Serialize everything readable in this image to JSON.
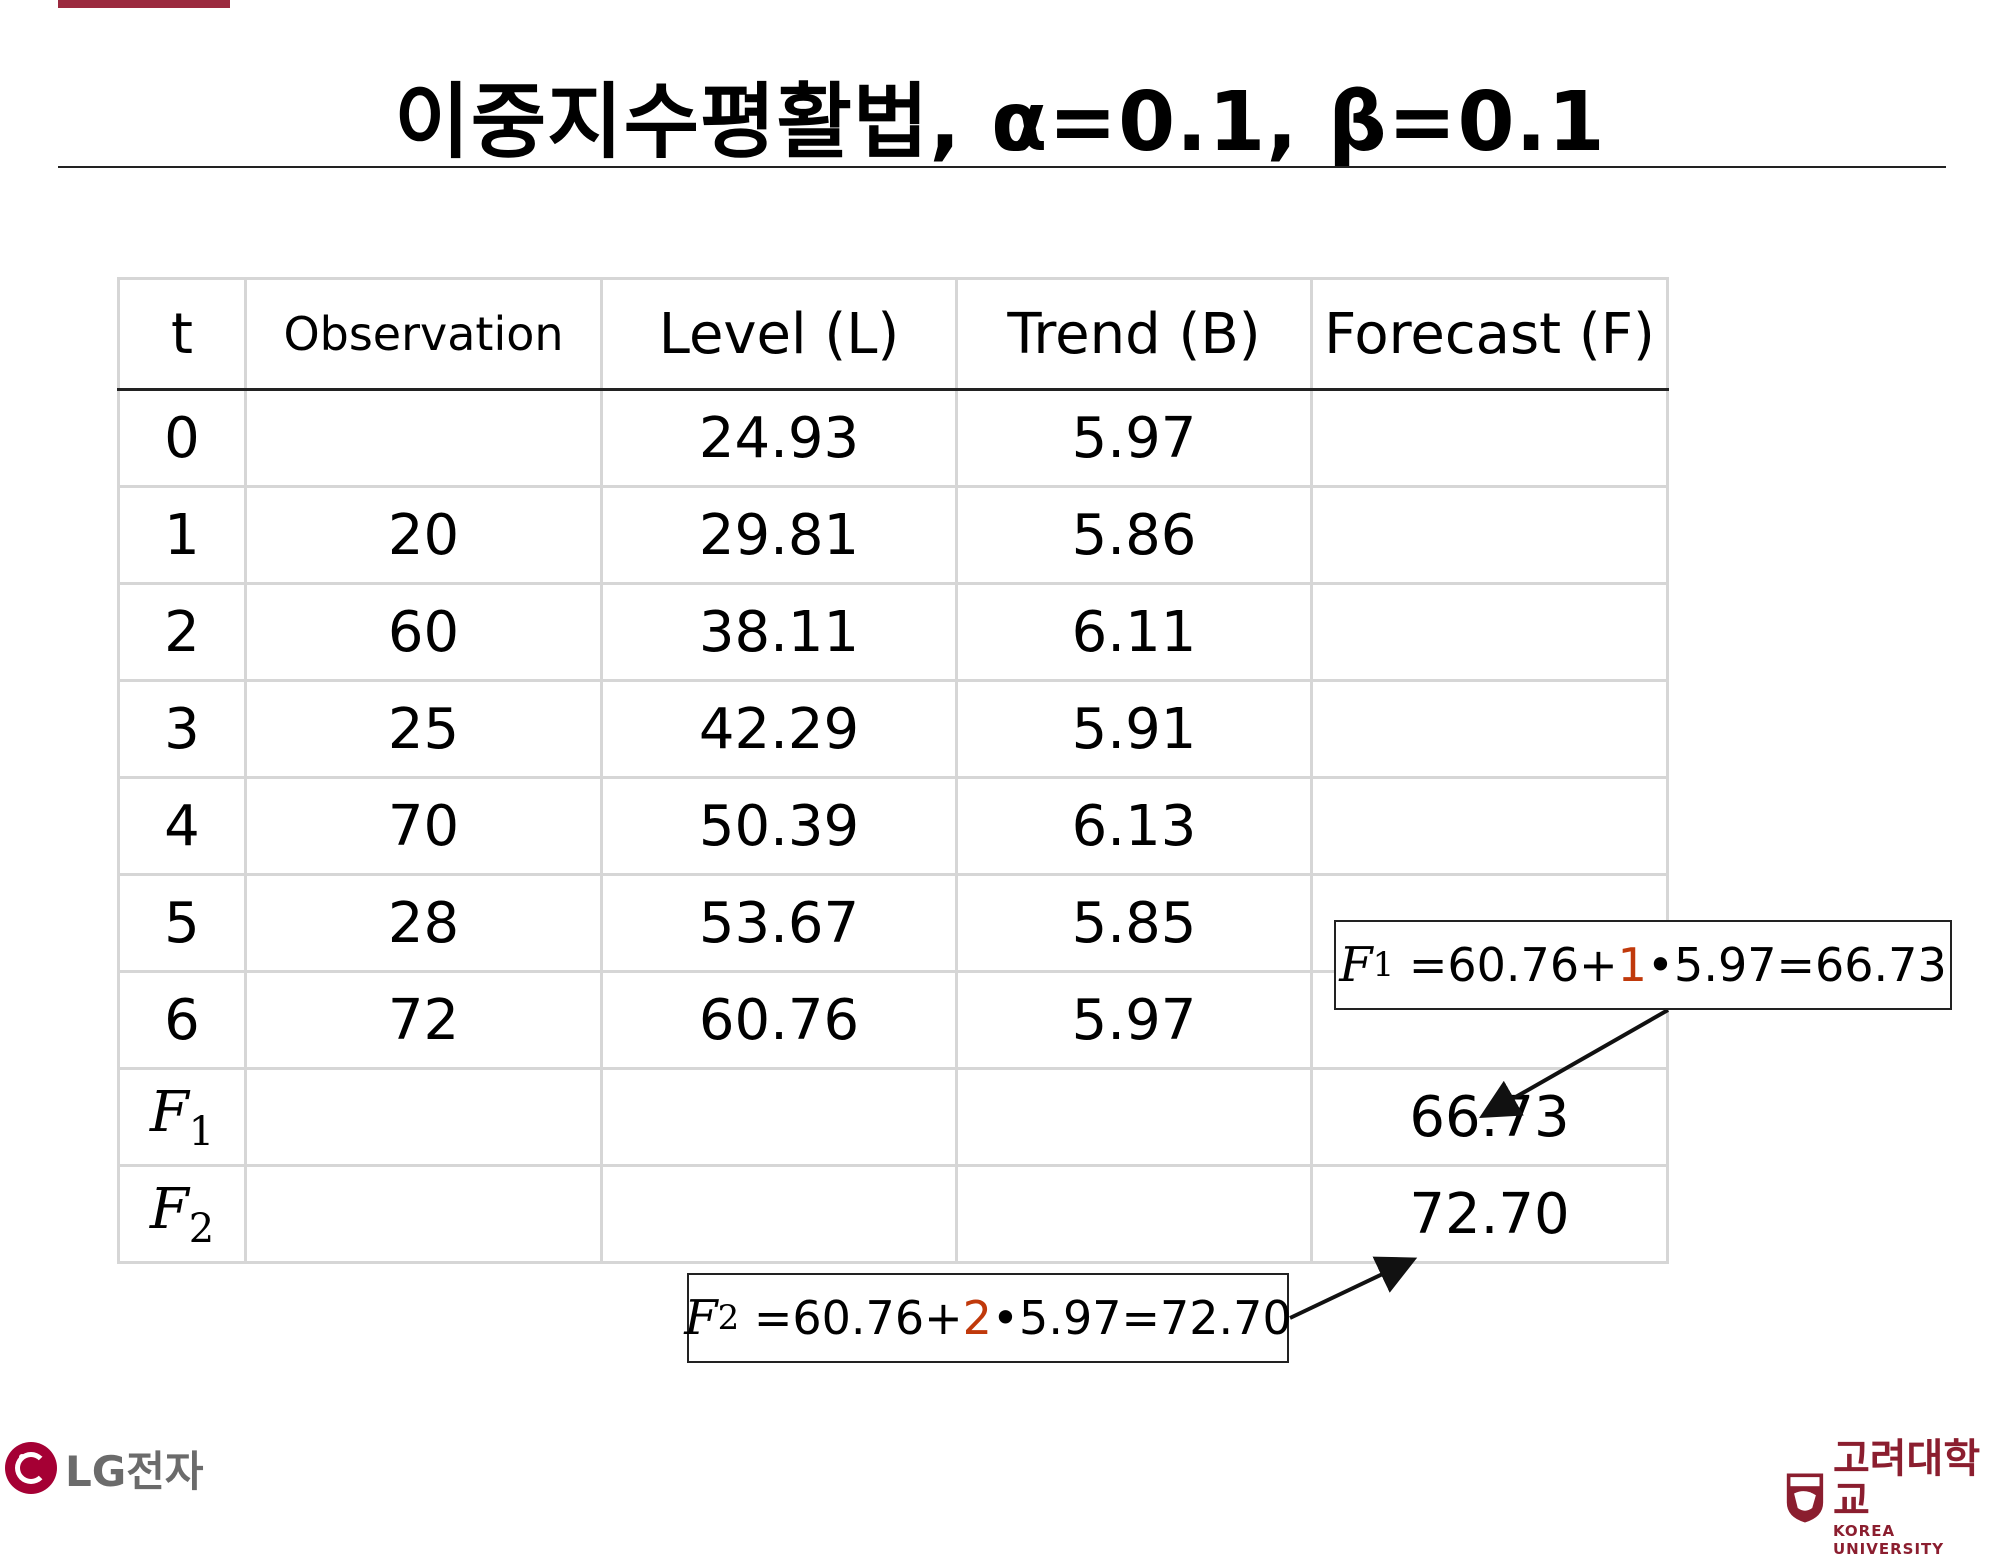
{
  "title": "이중지수평활법, α=0.1, β=0.1",
  "table": {
    "headers": [
      "t",
      "Observation",
      "Level (L)",
      "Trend (B)",
      "Forecast (F)"
    ],
    "rows": [
      {
        "t": "0",
        "observation": "",
        "level": "24.93",
        "trend": "5.97",
        "forecast": ""
      },
      {
        "t": "1",
        "observation": "20",
        "level": "29.81",
        "trend": "5.86",
        "forecast": ""
      },
      {
        "t": "2",
        "observation": "60",
        "level": "38.11",
        "trend": "6.11",
        "forecast": ""
      },
      {
        "t": "3",
        "observation": "25",
        "level": "42.29",
        "trend": "5.91",
        "forecast": ""
      },
      {
        "t": "4",
        "observation": "70",
        "level": "50.39",
        "trend": "6.13",
        "forecast": ""
      },
      {
        "t": "5",
        "observation": "28",
        "level": "53.67",
        "trend": "5.85",
        "forecast": ""
      },
      {
        "t": "6",
        "observation": "72",
        "level": "60.76",
        "trend": "5.97",
        "forecast": ""
      },
      {
        "t_symbol": "F",
        "t_sub": "1",
        "observation": "",
        "level": "",
        "trend": "",
        "forecast": "66.73"
      },
      {
        "t_symbol": "F",
        "t_sub": "2",
        "observation": "",
        "level": "",
        "trend": "",
        "forecast": "72.70"
      }
    ]
  },
  "callouts": {
    "f1": {
      "symbol": "F",
      "sub": "1",
      "prefix": " =60.76+",
      "highlight": "1",
      "suffix": "•5.97=66.73"
    },
    "f2": {
      "symbol": "F",
      "sub": "2",
      "prefix": " =60.76+",
      "highlight": "2",
      "suffix": "•5.97=72.70"
    }
  },
  "colors": {
    "accent": "#9b2a3f",
    "highlight": "#c0390b",
    "grid": "#d6d6d6"
  },
  "logos": {
    "left": {
      "text": "LG전자"
    },
    "right": {
      "korean": "고려대학교",
      "english": "KOREA UNIVERSITY"
    }
  }
}
